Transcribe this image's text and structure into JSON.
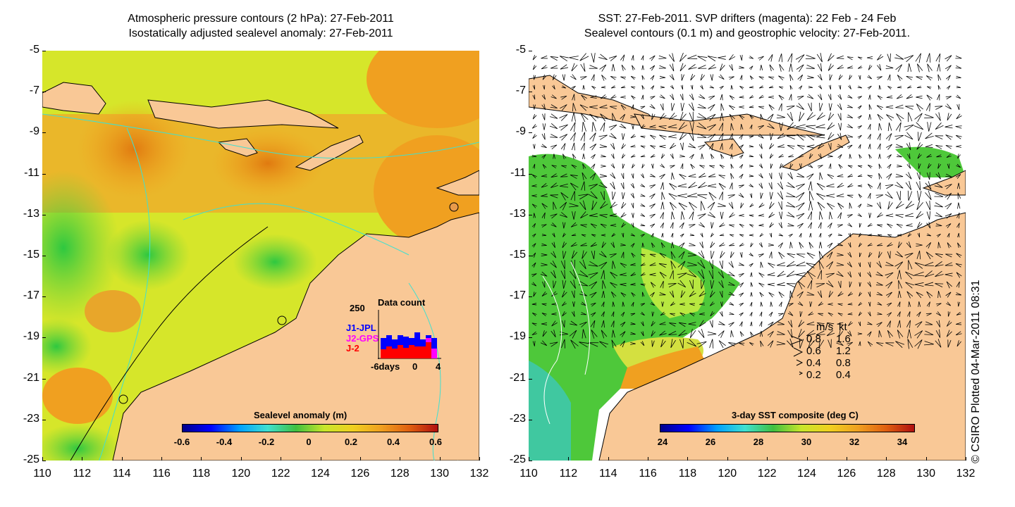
{
  "left_map": {
    "title_line1": "Atmospheric pressure contours (2 hPa): 27-Feb-2011",
    "title_line2": "Isostatically adjusted sealevel anomaly: 27-Feb-2011",
    "colorbar_title": "Sealevel anomaly (m)",
    "colorbar_ticks": [
      "-0.6",
      "-0.4",
      "-0.2",
      "0",
      "0.2",
      "0.4",
      "0.6"
    ],
    "inset": {
      "title": "Data count",
      "ymax_label": "250",
      "series": [
        {
          "name": "J1-JPL",
          "color": "#0000ff"
        },
        {
          "name": "J2-GPS",
          "color": "#ff00ff"
        },
        {
          "name": "J-2",
          "color": "#ff0000"
        }
      ],
      "x_labels": [
        "-6days",
        "0",
        "4"
      ]
    }
  },
  "right_map": {
    "title_line1": "SST: 27-Feb-2011. SVP drifters (magenta): 22 Feb - 24 Feb",
    "title_line2": "Sealevel contours (0.1 m) and geostrophic velocity: 27-Feb-2011.",
    "colorbar_title": "3-day SST composite (deg C)",
    "colorbar_ticks": [
      "24",
      "26",
      "28",
      "30",
      "32",
      "34"
    ],
    "velocity_legend": {
      "header_ms": "m/s",
      "header_kt": "kt",
      "rows": [
        {
          "ms": "0.8",
          "kt": "1.6"
        },
        {
          "ms": "0.6",
          "kt": "1.2"
        },
        {
          "ms": "0.4",
          "kt": "0.8"
        },
        {
          "ms": "0.2",
          "kt": "0.4"
        }
      ]
    }
  },
  "lat_labels": [
    "-5",
    "-7",
    "-9",
    "-11",
    "-13",
    "-15",
    "-17",
    "-19",
    "-21",
    "-23",
    "-25"
  ],
  "lon_labels": [
    "110",
    "112",
    "114",
    "116",
    "118",
    "120",
    "122",
    "124",
    "126",
    "128",
    "130",
    "132"
  ],
  "credit": "© CSIRO Plotted 04-Mar-2011 08:31",
  "colors": {
    "land": "#f9c896",
    "ocean_mid": "#c8e62a",
    "ocean_orange": "#f2a21e",
    "ocean_green": "#4ec83a",
    "contour_cyan": "#40e0d0"
  }
}
